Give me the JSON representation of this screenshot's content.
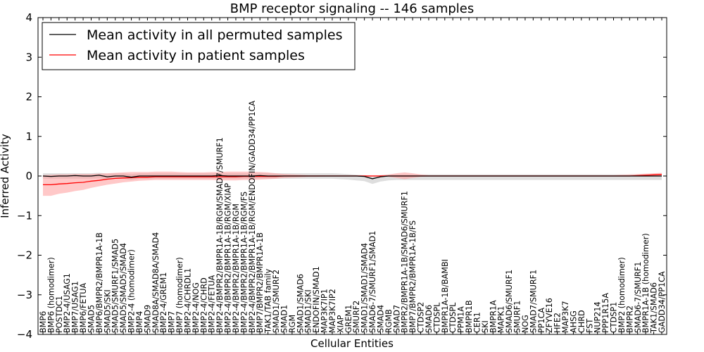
{
  "chart_data": {
    "type": "line",
    "title": "BMP receptor signaling -- 146 samples",
    "xlabel": "Cellular Entities",
    "ylabel": "Inferred Activity",
    "ylim": [
      -4,
      4
    ],
    "yticks": [
      -4,
      -3,
      -2,
      -1,
      0,
      1,
      2,
      3,
      4
    ],
    "legend_position": "top-left",
    "categories": [
      "BMP6",
      "BMP6 (homodimer)",
      "POSTDC1",
      "BMP2-4/USAG1",
      "BMP7/USAG1",
      "BMP6/FETUA",
      "SMAD5",
      "BMP6/BMPR2/BMPR1A-1B",
      "SMAD5/SKI",
      "SMAD5/SMURF1/SMAD5",
      "SMAD5/SMAD5/SMAD4",
      "BMP2-4 (homodimer)",
      "BMP4",
      "SMAD9",
      "SMAD8A/SMAD8A/SMAD4",
      "BMP2-4/GREM1",
      "BMP7",
      "BMP7 (homodimer)",
      "BMP2-4/CHRDL1",
      "BMP2-4/NOG",
      "BMP2-4/CHRD",
      "BMP2-4/FETUA",
      "BMP2-4/BMPR2/BMPR1A-1B/RGM/SMAD7/SMURF1",
      "BMP2-4/BMPR2/BMPR1A-1B/RGM/XIAP",
      "BMP2-4/BMPR2/BMPR1A-1B/RGM",
      "BMP2-4/BMPR2/BMPR1A-1B/RGM/FS",
      "BMP2-4/BMPR2/BMPR1A-1B/RGM/ENDOFIN/GADD34/PP1CA",
      "BMP7/BMPR2/BMPR1A-1B",
      "TAK1/TAB family",
      "SMAD1/SMURF2",
      "SMAD1",
      "RGM",
      "SMAD1/SMAD6",
      "SMAD1/SKI",
      "ENDOFIN/SMAD1",
      "MAP3K7IP1",
      "MAP3K7IP2",
      "XIAP",
      "GREM1",
      "SMURF2",
      "SMAD1/SMAD1/SMAD4",
      "SMAD6-7/SMURF1/SMAD1",
      "SMAD4",
      "RGMB",
      "SMAD7",
      "BMPR2/BMPR1A-1B/SMAD6/SMURF1",
      "BMP7/BMPR2/BMPR1A-1B/FS",
      "CTDSP2",
      "SMAD6",
      "CTDSPL",
      "BMPR1A-1B/BAMBI",
      "CTDSPL",
      "PPM1A",
      "BMPR1B",
      "CER1",
      "SKI",
      "BMPR1A",
      "MAPK1",
      "SMAD6/SMURF1",
      "SMURF1",
      "NOG",
      "SMAD7/SMURF1",
      "PP1CA",
      "ZFYVE16",
      "HFE2",
      "MAP3K7",
      "AHSG",
      "CHRD",
      "FST",
      "NUP214",
      "PPP1R15A",
      "CTDSP1",
      "BMP2 (homodimer)",
      "BMPR2",
      "SMAD6-7/SMURF1",
      "BMPR1A-1B (homodimer)",
      "TAK1/SMAD6",
      "GADD34/PP1CA"
    ],
    "series": [
      {
        "name": "Mean activity in all permuted samples",
        "color": "#000000",
        "band_color": "#c8c8c8",
        "values": [
          0,
          -0.01,
          0,
          0,
          0.01,
          0,
          0,
          0.02,
          -0.02,
          0,
          0,
          -0.03,
          0,
          0,
          0,
          0,
          0,
          0,
          0,
          0,
          0,
          0,
          0.01,
          0,
          0,
          0,
          0,
          0.01,
          0,
          0,
          0,
          0,
          0,
          0,
          0,
          0,
          0,
          0,
          0,
          0,
          -0.01,
          -0.07,
          -0.02,
          0,
          0,
          0,
          0,
          0,
          0,
          0,
          0,
          0,
          0,
          0,
          0,
          0,
          0,
          0,
          0,
          0,
          0,
          0,
          0,
          0,
          0,
          0,
          0,
          0,
          0,
          0,
          0,
          0,
          0,
          0,
          0,
          0,
          0,
          0
        ],
        "lower": [
          -0.07,
          -0.07,
          -0.07,
          -0.07,
          -0.07,
          -0.07,
          -0.07,
          -0.06,
          -0.08,
          -0.07,
          -0.07,
          -0.1,
          -0.07,
          -0.07,
          -0.07,
          -0.07,
          -0.07,
          -0.07,
          -0.07,
          -0.07,
          -0.07,
          -0.07,
          -0.06,
          -0.07,
          -0.07,
          -0.07,
          -0.07,
          -0.06,
          -0.07,
          -0.07,
          -0.07,
          -0.07,
          -0.07,
          -0.07,
          -0.07,
          -0.07,
          -0.07,
          -0.08,
          -0.09,
          -0.11,
          -0.13,
          -0.2,
          -0.14,
          -0.11,
          -0.1,
          -0.1,
          -0.1,
          -0.1,
          -0.1,
          -0.1,
          -0.1,
          -0.1,
          -0.1,
          -0.1,
          -0.1,
          -0.1,
          -0.1,
          -0.1,
          -0.1,
          -0.1,
          -0.1,
          -0.1,
          -0.1,
          -0.1,
          -0.1,
          -0.1,
          -0.1,
          -0.1,
          -0.1,
          -0.1,
          -0.1,
          -0.1,
          -0.1,
          -0.1,
          -0.1,
          -0.1,
          -0.1,
          -0.1
        ],
        "upper": [
          0.07,
          0.07,
          0.07,
          0.07,
          0.07,
          0.07,
          0.07,
          0.08,
          0.06,
          0.07,
          0.07,
          0.05,
          0.07,
          0.07,
          0.07,
          0.07,
          0.07,
          0.07,
          0.07,
          0.07,
          0.07,
          0.07,
          0.08,
          0.07,
          0.07,
          0.07,
          0.07,
          0.08,
          0.07,
          0.07,
          0.07,
          0.07,
          0.07,
          0.07,
          0.07,
          0.07,
          0.07,
          0.06,
          0.05,
          0.03,
          0.02,
          -0.02,
          0.02,
          0.03,
          0.04,
          0.04,
          0.04,
          0.04,
          0.04,
          0.04,
          0.04,
          0.04,
          0.04,
          0.04,
          0.04,
          0.04,
          0.04,
          0.04,
          0.04,
          0.04,
          0.04,
          0.04,
          0.04,
          0.04,
          0.04,
          0.04,
          0.04,
          0.04,
          0.04,
          0.04,
          0.04,
          0.04,
          0.04,
          0.04,
          0.04,
          0.04,
          0.04,
          0.04
        ]
      },
      {
        "name": "Mean activity in patient samples",
        "color": "#ff0000",
        "band_color": "#ff9a9a",
        "values": [
          -0.22,
          -0.22,
          -0.2,
          -0.19,
          -0.17,
          -0.16,
          -0.13,
          -0.11,
          -0.08,
          -0.06,
          -0.05,
          -0.04,
          -0.03,
          -0.03,
          -0.02,
          -0.02,
          -0.02,
          -0.02,
          -0.02,
          -0.02,
          -0.02,
          -0.02,
          -0.02,
          -0.02,
          -0.02,
          -0.01,
          -0.01,
          -0.01,
          -0.01,
          -0.01,
          0,
          0,
          0,
          0,
          0,
          0,
          0,
          0,
          0,
          0,
          0,
          0,
          0,
          0,
          0,
          0,
          0,
          0,
          0,
          0,
          0,
          0,
          0,
          0,
          0,
          0,
          0,
          0,
          0,
          0,
          0,
          0,
          0,
          0,
          0,
          0,
          0,
          0,
          0,
          0,
          0,
          0,
          0,
          0,
          0.01,
          0.02,
          0.03,
          0.04
        ],
        "lower": [
          -0.5,
          -0.5,
          -0.45,
          -0.42,
          -0.38,
          -0.35,
          -0.3,
          -0.26,
          -0.22,
          -0.19,
          -0.16,
          -0.14,
          -0.12,
          -0.11,
          -0.1,
          -0.1,
          -0.1,
          -0.1,
          -0.1,
          -0.1,
          -0.1,
          -0.1,
          -0.11,
          -0.11,
          -0.11,
          -0.1,
          -0.1,
          -0.09,
          -0.08,
          -0.07,
          -0.05,
          -0.04,
          -0.03,
          -0.02,
          -0.02,
          -0.01,
          -0.01,
          -0.01,
          -0.01,
          -0.01,
          -0.01,
          -0.01,
          -0.01,
          -0.02,
          -0.05,
          -0.08,
          -0.05,
          -0.02,
          -0.01,
          -0.01,
          -0.01,
          -0.01,
          -0.01,
          -0.01,
          -0.01,
          -0.01,
          -0.01,
          -0.01,
          -0.01,
          -0.01,
          -0.01,
          -0.01,
          -0.01,
          -0.01,
          -0.01,
          -0.01,
          -0.01,
          -0.01,
          -0.01,
          -0.01,
          -0.01,
          -0.01,
          -0.01,
          -0.01,
          -0.01,
          -0.01,
          -0.01,
          0
        ],
        "upper": [
          0.02,
          0.03,
          0.04,
          0.04,
          0.05,
          0.05,
          0.05,
          0.06,
          0.07,
          0.08,
          0.09,
          0.1,
          0.1,
          0.1,
          0.11,
          0.11,
          0.11,
          0.1,
          0.09,
          0.09,
          0.09,
          0.1,
          0.1,
          0.11,
          0.11,
          0.11,
          0.11,
          0.1,
          0.09,
          0.07,
          0.05,
          0.04,
          0.03,
          0.02,
          0.02,
          0.02,
          0.02,
          0.02,
          0.02,
          0.02,
          0.02,
          0.02,
          0.02,
          0.04,
          0.07,
          0.09,
          0.07,
          0.04,
          0.02,
          0.02,
          0.02,
          0.02,
          0.02,
          0.02,
          0.02,
          0.02,
          0.02,
          0.02,
          0.02,
          0.02,
          0.02,
          0.02,
          0.02,
          0.02,
          0.02,
          0.02,
          0.02,
          0.02,
          0.02,
          0.02,
          0.02,
          0.02,
          0.03,
          0.04,
          0.05,
          0.06,
          0.07,
          0.08
        ]
      }
    ]
  }
}
